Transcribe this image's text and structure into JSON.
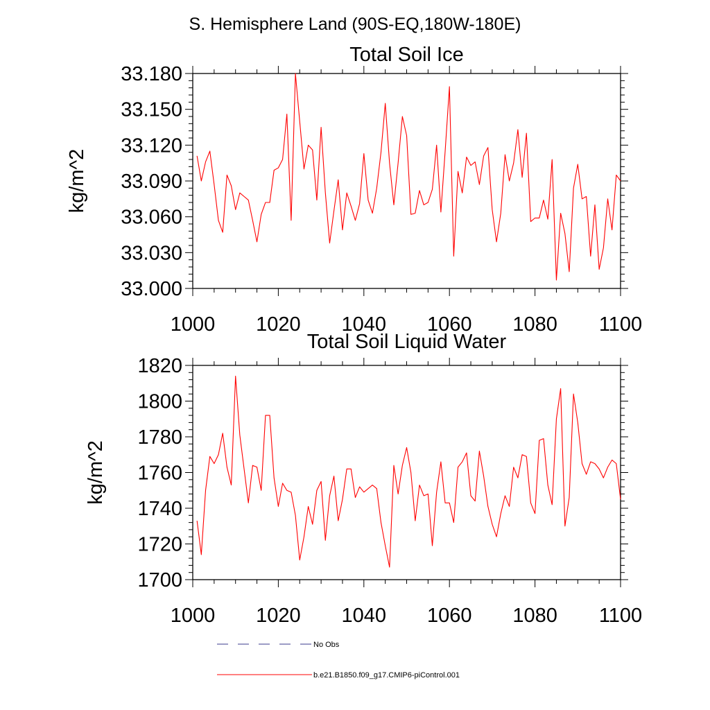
{
  "page_title": "S. Hemisphere Land (90S-EQ,180W-180E)",
  "chart_data": [
    {
      "type": "line",
      "title": "Total Soil Ice",
      "xlabel": "",
      "ylabel": "kg/m^2",
      "xlim": [
        1000,
        1100
      ],
      "ylim": [
        33.0,
        33.18
      ],
      "x_ticks": [
        1000,
        1020,
        1040,
        1060,
        1080,
        1100
      ],
      "x_tick_labels": [
        "1000",
        "1020",
        "1040",
        "1060",
        "1080",
        "1100"
      ],
      "y_ticks": [
        33.0,
        33.03,
        33.06,
        33.09,
        33.12,
        33.15,
        33.18
      ],
      "y_tick_labels": [
        "33.000",
        "33.030",
        "33.060",
        "33.090",
        "33.120",
        "33.150",
        "33.180"
      ],
      "grid": false,
      "series": [
        {
          "name": "b.e21.B1850.f09_g17.CMIP6-piControl.001",
          "color": "#ff0000",
          "x_start": 1001,
          "x_step": 1,
          "values": [
            33.111,
            33.09,
            33.106,
            33.115,
            33.087,
            33.057,
            33.047,
            33.095,
            33.086,
            33.066,
            33.08,
            33.077,
            33.074,
            33.057,
            33.039,
            33.062,
            33.072,
            33.072,
            33.099,
            33.101,
            33.108,
            33.146,
            33.057,
            33.18,
            33.14,
            33.1,
            33.12,
            33.116,
            33.074,
            33.135,
            33.08,
            33.038,
            33.065,
            33.091,
            33.049,
            33.08,
            33.069,
            33.057,
            33.071,
            33.113,
            33.074,
            33.063,
            33.084,
            33.114,
            33.155,
            33.105,
            33.07,
            33.105,
            33.144,
            33.128,
            33.062,
            33.063,
            33.082,
            33.07,
            33.072,
            33.083,
            33.12,
            33.064,
            33.115,
            33.169,
            33.027,
            33.098,
            33.08,
            33.11,
            33.103,
            33.106,
            33.087,
            33.111,
            33.118,
            33.066,
            33.039,
            33.063,
            33.112,
            33.09,
            33.105,
            33.133,
            33.093,
            33.13,
            33.056,
            33.059,
            33.059,
            33.074,
            33.058,
            33.108,
            33.007,
            33.063,
            33.046,
            33.014,
            33.084,
            33.104,
            33.075,
            33.077,
            33.027,
            33.07,
            33.016,
            33.034,
            33.075,
            33.049,
            33.095,
            33.09
          ]
        }
      ]
    },
    {
      "type": "line",
      "title": "Total Soil Liquid Water",
      "xlabel": "",
      "ylabel": "kg/m^2",
      "xlim": [
        1000,
        1100
      ],
      "ylim": [
        1700,
        1820
      ],
      "x_ticks": [
        1000,
        1020,
        1040,
        1060,
        1080,
        1100
      ],
      "x_tick_labels": [
        "1000",
        "1020",
        "1040",
        "1060",
        "1080",
        "1100"
      ],
      "y_ticks": [
        1700,
        1720,
        1740,
        1760,
        1780,
        1800,
        1820
      ],
      "y_tick_labels": [
        "1700",
        "1720",
        "1740",
        "1760",
        "1780",
        "1800",
        "1820"
      ],
      "grid": false,
      "series": [
        {
          "name": "b.e21.B1850.f09_g17.CMIP6-piControl.001",
          "color": "#ff0000",
          "x_start": 1001,
          "x_step": 1,
          "values": [
            1733,
            1714,
            1750,
            1769,
            1765,
            1770,
            1782,
            1763,
            1753,
            1814,
            1781,
            1762,
            1743,
            1764,
            1763,
            1750,
            1792,
            1792,
            1757,
            1741,
            1754,
            1750,
            1749,
            1736,
            1711,
            1724,
            1741,
            1731,
            1750,
            1755,
            1722,
            1747,
            1758,
            1733,
            1745,
            1762,
            1762,
            1746,
            1752,
            1749,
            1751,
            1753,
            1751,
            1732,
            1719,
            1707,
            1764,
            1748,
            1764,
            1774,
            1760,
            1733,
            1753,
            1747,
            1748,
            1719,
            1749,
            1766,
            1743,
            1743,
            1732,
            1763,
            1766,
            1771,
            1747,
            1744,
            1772,
            1758,
            1741,
            1731,
            1724,
            1737,
            1747,
            1741,
            1763,
            1757,
            1770,
            1769,
            1743,
            1737,
            1778,
            1779,
            1753,
            1742,
            1790,
            1807,
            1730,
            1746,
            1804,
            1788,
            1765,
            1759,
            1766,
            1765,
            1762,
            1757,
            1763,
            1767,
            1765,
            1745
          ]
        }
      ]
    }
  ],
  "legend": {
    "placement": "bottom",
    "entries": [
      {
        "label": "No Obs",
        "color": "#3a3a8c",
        "style": "dashed"
      },
      {
        "label": "b.e21.B1850.f09_g17.CMIP6-piControl.001",
        "color": "#ff0000",
        "style": "solid"
      }
    ]
  }
}
